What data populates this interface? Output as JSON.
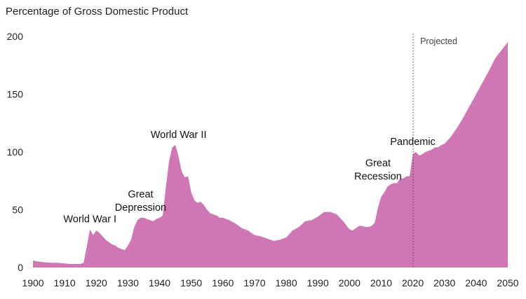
{
  "chart_data": {
    "type": "area",
    "title": "",
    "ylabel": "Percentage of Gross Domestic Product",
    "xlabel": "",
    "xlim": [
      1900,
      2050
    ],
    "ylim": [
      0,
      200
    ],
    "grid": false,
    "color": "#d076b4",
    "x_ticks": [
      "1900",
      "1910",
      "1920",
      "1930",
      "1940",
      "1950",
      "1960",
      "1970",
      "1980",
      "1990",
      "2000",
      "2010",
      "2020",
      "2030",
      "2040",
      "2050"
    ],
    "y_ticks": [
      "0",
      "50",
      "100",
      "150",
      "200"
    ],
    "projection_start": 2020,
    "projection_label": "Projected",
    "annotations": [
      {
        "lines": [
          "World War I"
        ],
        "x": 1918,
        "y": 33
      },
      {
        "lines": [
          "Great",
          "Depression"
        ],
        "x": 1934,
        "y": 43
      },
      {
        "lines": [
          "World War II"
        ],
        "x": 1946,
        "y": 106
      },
      {
        "lines": [
          "Great",
          "Recession"
        ],
        "x": 2009,
        "y": 70
      },
      {
        "lines": [
          "Pandemic"
        ],
        "x": 2020,
        "y": 100
      }
    ],
    "series": [
      {
        "x": [
          1900,
          1902,
          1904,
          1906,
          1908,
          1910,
          1912,
          1914,
          1915,
          1916,
          1917,
          1918,
          1919,
          1920,
          1921,
          1922,
          1923,
          1924,
          1925,
          1926,
          1927,
          1928,
          1929,
          1930,
          1931,
          1932,
          1933,
          1934,
          1935,
          1936,
          1937,
          1938,
          1939,
          1940,
          1941,
          1942,
          1943,
          1944,
          1945,
          1946,
          1947,
          1948,
          1949,
          1950,
          1951,
          1952,
          1953,
          1954,
          1955,
          1956,
          1957,
          1958,
          1959,
          1960,
          1962,
          1964,
          1966,
          1968,
          1970,
          1972,
          1974,
          1976,
          1978,
          1980,
          1982,
          1984,
          1986,
          1988,
          1990,
          1992,
          1994,
          1996,
          1998,
          2000,
          2001,
          2002,
          2003,
          2004,
          2005,
          2006,
          2007,
          2008,
          2009,
          2010,
          2011,
          2012,
          2013,
          2014,
          2015,
          2016,
          2017,
          2018,
          2019,
          2020,
          2021,
          2022,
          2023,
          2024,
          2025,
          2026,
          2027,
          2028,
          2029,
          2030,
          2032,
          2034,
          2036,
          2038,
          2040,
          2042,
          2044,
          2046,
          2048,
          2050
        ],
        "y": [
          6,
          5,
          4.5,
          4,
          4,
          3.5,
          3,
          3,
          3,
          4,
          18,
          33,
          28,
          32,
          30,
          27,
          24,
          22,
          20,
          19,
          17,
          16,
          15,
          19,
          24,
          35,
          41,
          43,
          43,
          42,
          41,
          40,
          42,
          43,
          45,
          70,
          92,
          104,
          106,
          96,
          83,
          78,
          79,
          65,
          58,
          56,
          57,
          54,
          50,
          47,
          46,
          45,
          43,
          43,
          41,
          38,
          34,
          32,
          28,
          27,
          25,
          23,
          24,
          26,
          32,
          35,
          40,
          41,
          44,
          48,
          48,
          46,
          40,
          33,
          32,
          34,
          36,
          36,
          35,
          35,
          36,
          39,
          52,
          61,
          65,
          70,
          72,
          73,
          73,
          77,
          77,
          79,
          79,
          98,
          100,
          97,
          98,
          100,
          101,
          102,
          104,
          104,
          106,
          107,
          113,
          121,
          130,
          140,
          150,
          160,
          170,
          181,
          188,
          195
        ]
      }
    ]
  }
}
